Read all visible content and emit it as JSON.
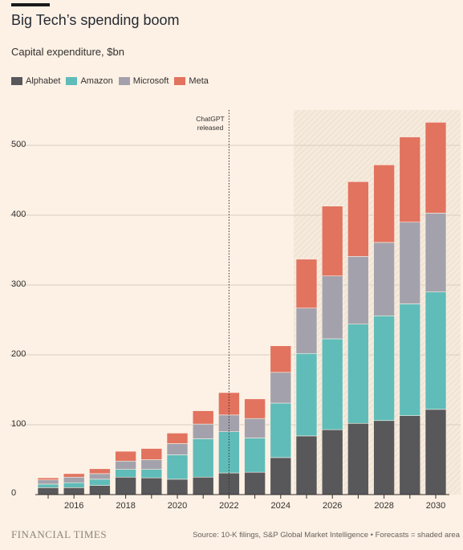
{
  "header": {
    "title": "Big Tech’s spending boom",
    "subtitle": "Capital expenditure, $bn"
  },
  "annotation": {
    "line1": "ChatGPT",
    "line2": "released"
  },
  "footer": {
    "brand": "FINANCIAL TIMES",
    "source": "Source: 10-K filings, S&P Global Market Intelligence • Forecasts = shaded area"
  },
  "colors": {
    "Alphabet": "#58585b",
    "Amazon": "#5fbcb9",
    "Microsoft": "#a3a2ac",
    "Meta": "#e1735f",
    "background": "#fdf1e5",
    "grid": "#d8cdbe"
  },
  "chart_data": {
    "type": "bar",
    "stacked": true,
    "x": [
      2015,
      2016,
      2017,
      2018,
      2019,
      2020,
      2021,
      2022,
      2023,
      2024,
      2025,
      2026,
      2027,
      2028,
      2029,
      2030
    ],
    "x_tick_labels": [
      "2016",
      "2018",
      "2020",
      "2022",
      "2024",
      "2026",
      "2028",
      "2030"
    ],
    "y_tick_labels": [
      "0",
      "100",
      "200",
      "300",
      "400",
      "500"
    ],
    "ylim": [
      0,
      550
    ],
    "grid": true,
    "legend_position": "top-left",
    "forecast_from": 2025,
    "event_marker_x": 2022,
    "series": [
      {
        "name": "Alphabet",
        "values": [
          10,
          10,
          13,
          25,
          24,
          22,
          25,
          31,
          32,
          53,
          84,
          93,
          102,
          106,
          113,
          122
        ]
      },
      {
        "name": "Amazon",
        "values": [
          5,
          7,
          9,
          11,
          12,
          35,
          55,
          59,
          49,
          78,
          118,
          130,
          142,
          150,
          160,
          168
        ]
      },
      {
        "name": "Microsoft",
        "values": [
          6,
          8,
          8,
          12,
          14,
          16,
          21,
          24,
          28,
          44,
          65,
          90,
          97,
          105,
          117,
          113
        ]
      },
      {
        "name": "Meta",
        "values": [
          3,
          5,
          7,
          14,
          16,
          15,
          19,
          32,
          28,
          38,
          70,
          100,
          107,
          111,
          122,
          130
        ]
      }
    ]
  }
}
